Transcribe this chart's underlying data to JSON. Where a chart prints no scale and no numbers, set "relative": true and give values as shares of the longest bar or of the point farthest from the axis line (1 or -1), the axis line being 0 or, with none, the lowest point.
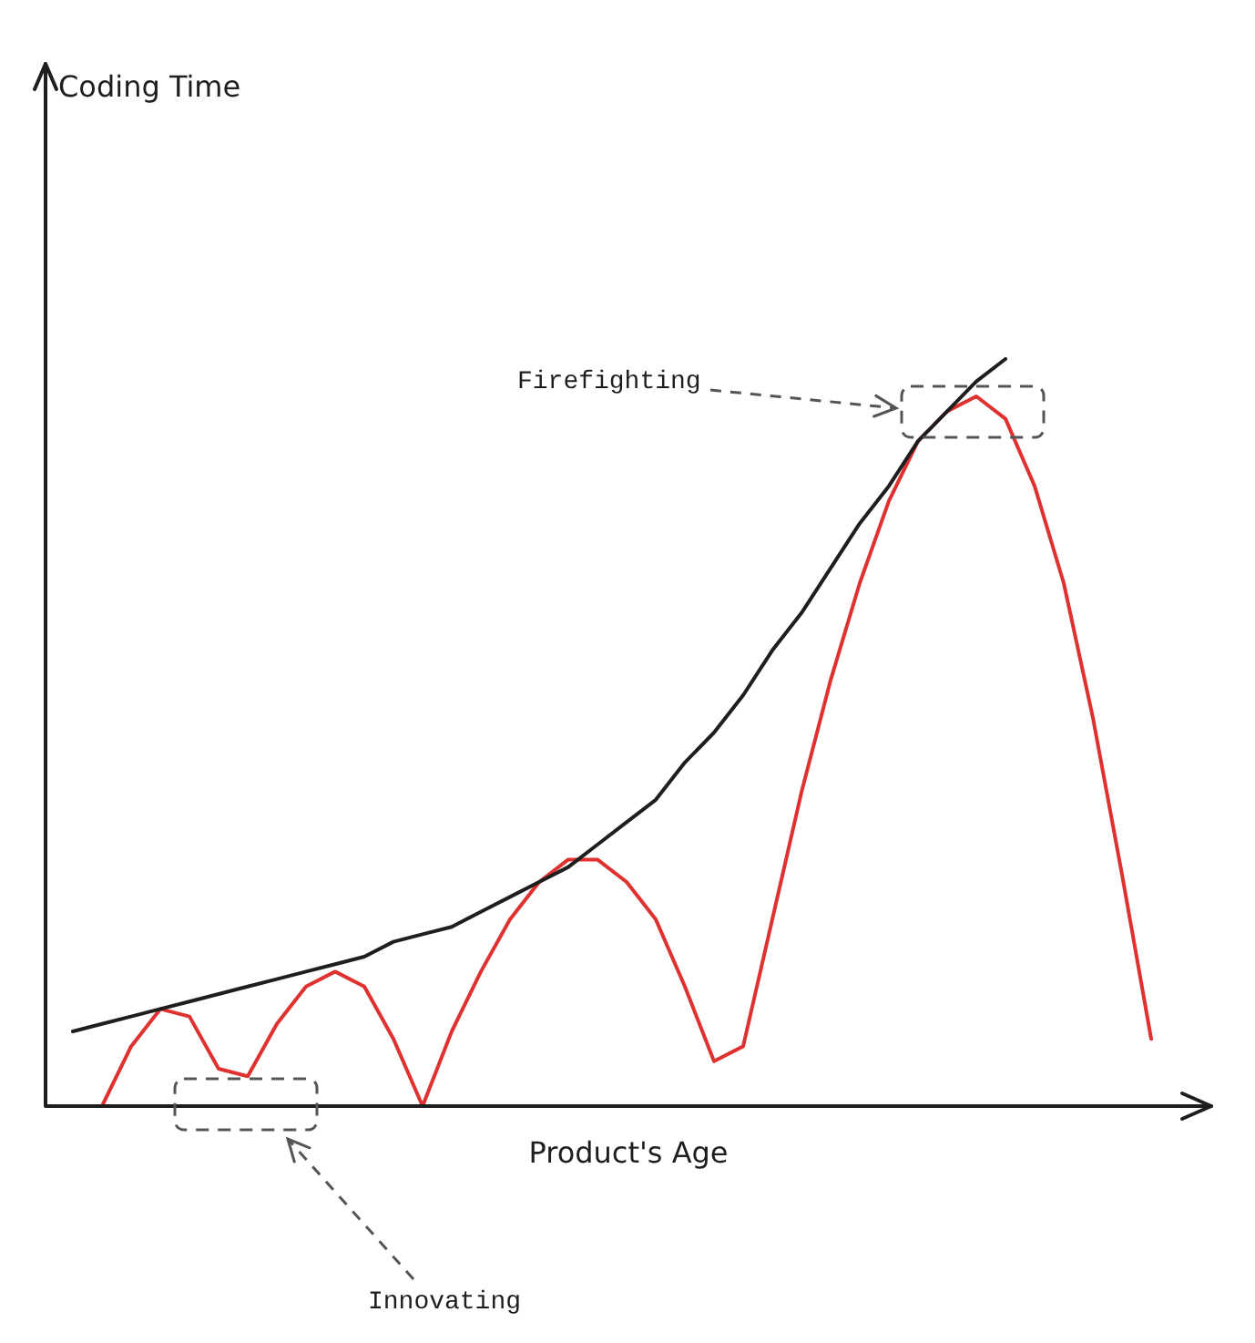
{
  "chart_data": {
    "type": "line",
    "relative": true,
    "xlabel": "Product's Age",
    "legend": false,
    "grid": false,
    "categories": [
      null,
      null,
      null,
      null,
      null,
      null,
      null,
      null,
      null,
      null,
      null,
      null,
      null,
      null,
      null,
      null,
      null,
      null,
      null,
      null,
      null,
      null,
      null,
      null,
      null,
      null,
      null,
      null,
      null,
      null,
      null,
      null,
      null,
      null,
      null,
      null,
      null,
      null,
      null
    ],
    "series": [
      {
        "color": "#1e1e1e",
        "values": [
          0.1,
          0.11,
          0.12,
          0.13,
          0.14,
          0.15,
          0.16,
          0.17,
          0.18,
          0.19,
          0.2,
          0.22,
          0.23,
          0.24,
          0.26,
          0.28,
          0.3,
          0.32,
          0.35,
          0.38,
          0.41,
          0.46,
          0.5,
          0.55,
          0.61,
          0.66,
          0.72,
          0.78,
          0.83,
          0.89,
          0.93,
          0.97,
          1,
          null,
          null,
          null,
          null,
          null,
          null
        ]
      },
      {
        "color": "#e03131",
        "values": [
          null,
          0,
          0.08,
          0.13,
          0.12,
          0.05,
          0.04,
          0.11,
          0.16,
          0.18,
          0.16,
          0.09,
          0,
          0.1,
          0.18,
          0.25,
          0.3,
          0.33,
          0.33,
          0.3,
          0.25,
          0.16,
          0.06,
          0.08,
          0.25,
          0.42,
          0.57,
          0.7,
          0.81,
          0.89,
          0.93,
          0.95,
          0.92,
          0.83,
          0.7,
          0.52,
          0.31,
          0.09,
          null
        ]
      }
    ],
    "annotations": [
      "Firefighting",
      "Innovating",
      "Coding Time"
    ]
  }
}
